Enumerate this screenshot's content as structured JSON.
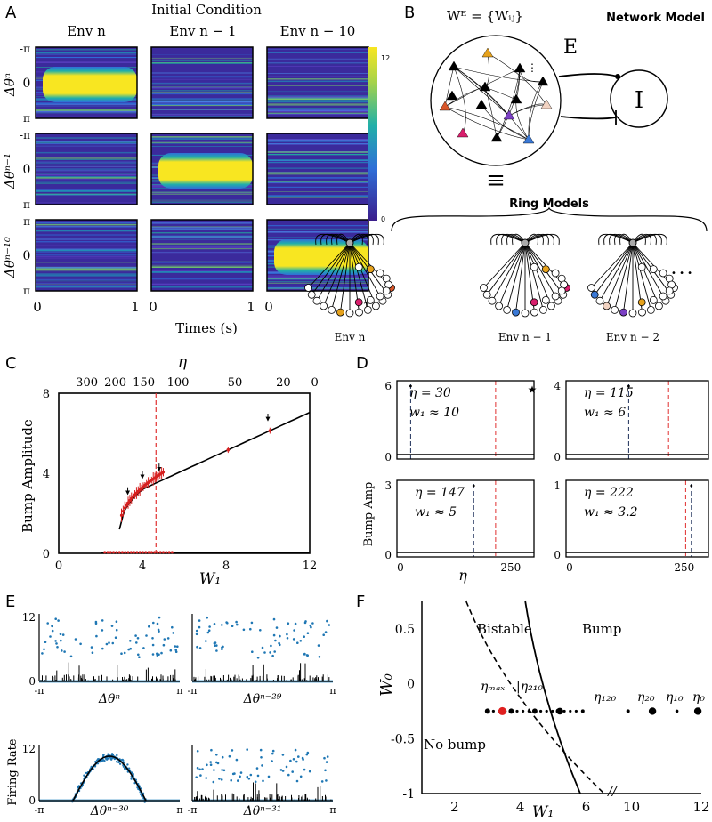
{
  "panels": {
    "A": {
      "letter": "A",
      "title": "Initial Condition",
      "columns": [
        "Env n",
        "Env n − 1",
        "Env n − 10"
      ],
      "rows": [
        "Δθⁿ",
        "Δθⁿ⁻¹",
        "Δθⁿ⁻¹⁰"
      ],
      "ytick_top": "-π",
      "ytick_mid": "0",
      "ytick_bot": "π",
      "xtick_left": "0",
      "xtick_right": "1",
      "xlabel": "Times (s)",
      "colorbar_max": "12",
      "colorbar_min": "0",
      "colors": {
        "background": "#3b2a9c",
        "bump": "#f8e621",
        "edge": "#21a6a0"
      },
      "bump_cells": [
        [
          1,
          0,
          0
        ],
        [
          0,
          1,
          0
        ],
        [
          0,
          0,
          1
        ]
      ]
    },
    "B": {
      "letter": "B",
      "weights_label": "Wᴱ = {Wᵢⱼ}",
      "title": "Network Model",
      "exc_label": "E",
      "inh_label": "I",
      "equiv": "≡",
      "ring_title": "Ring Models",
      "rings": [
        "Env n",
        "Env n − 1",
        "Env n − 2"
      ],
      "ellipsis": "• • •",
      "node_colors": [
        "#e6a21c",
        "#d9562a",
        "#d81f6c",
        "#7b3fc4",
        "#3a79d6",
        "#f2d3c2"
      ]
    },
    "C": {
      "letter": "C",
      "ylabel": "Bump Amplitude",
      "xlabel": "W₁",
      "top_label": "η",
      "xticks": [
        "0",
        "4",
        "8",
        "12"
      ],
      "yticks": [
        "0",
        "4",
        "8"
      ],
      "top_ticks": [
        "300",
        "200",
        "150",
        "100",
        "50",
        "20",
        "0"
      ]
    },
    "D": {
      "letter": "D",
      "ylabel": "Bump Amp",
      "xlabel": "η",
      "star": "★",
      "xticks": [
        "0",
        "250"
      ],
      "subplots": [
        {
          "eta_text": "η = 30",
          "w_text": "w₁ ≈ 10",
          "ymax": "6",
          "ymin": "0"
        },
        {
          "eta_text": "η = 115",
          "w_text": "w₁ ≈ 6",
          "ymax": "4",
          "ymin": "0"
        },
        {
          "eta_text": "η = 147",
          "w_text": "w₁ ≈ 5",
          "ymax": "3",
          "ymin": "0"
        },
        {
          "eta_text": "η = 222",
          "w_text": "w₁ ≈ 3.2",
          "ymax": "1",
          "ymin": "0"
        }
      ]
    },
    "E": {
      "letter": "E",
      "ylabel": "Firing Rate",
      "ytick_top": "12",
      "ytick_bot": "0",
      "xtick_left": "-π",
      "xtick_right": "π",
      "subplots": [
        "Δθⁿ",
        "Δθⁿ⁻²⁹",
        "Δθⁿ⁻³⁰",
        "Δθⁿ⁻³¹"
      ]
    },
    "F": {
      "letter": "F",
      "ylabel": "W₀",
      "xlabel": "W₁",
      "yticks": [
        "0.5",
        "0",
        "-0.5",
        "-1"
      ],
      "xticks": [
        "2",
        "4",
        "6",
        "10",
        "12"
      ],
      "region_bistable": "Bistable",
      "region_bump": "Bump",
      "region_nobump": "No bump",
      "label_max": "ηₘₐₓ",
      "label_210": "|η₂₁₀",
      "label_120": "η₁₂₀",
      "label_20": "η₂₀",
      "label_10": "η₁₀",
      "label_0": "η₀",
      "axis_break": "//"
    }
  }
}
